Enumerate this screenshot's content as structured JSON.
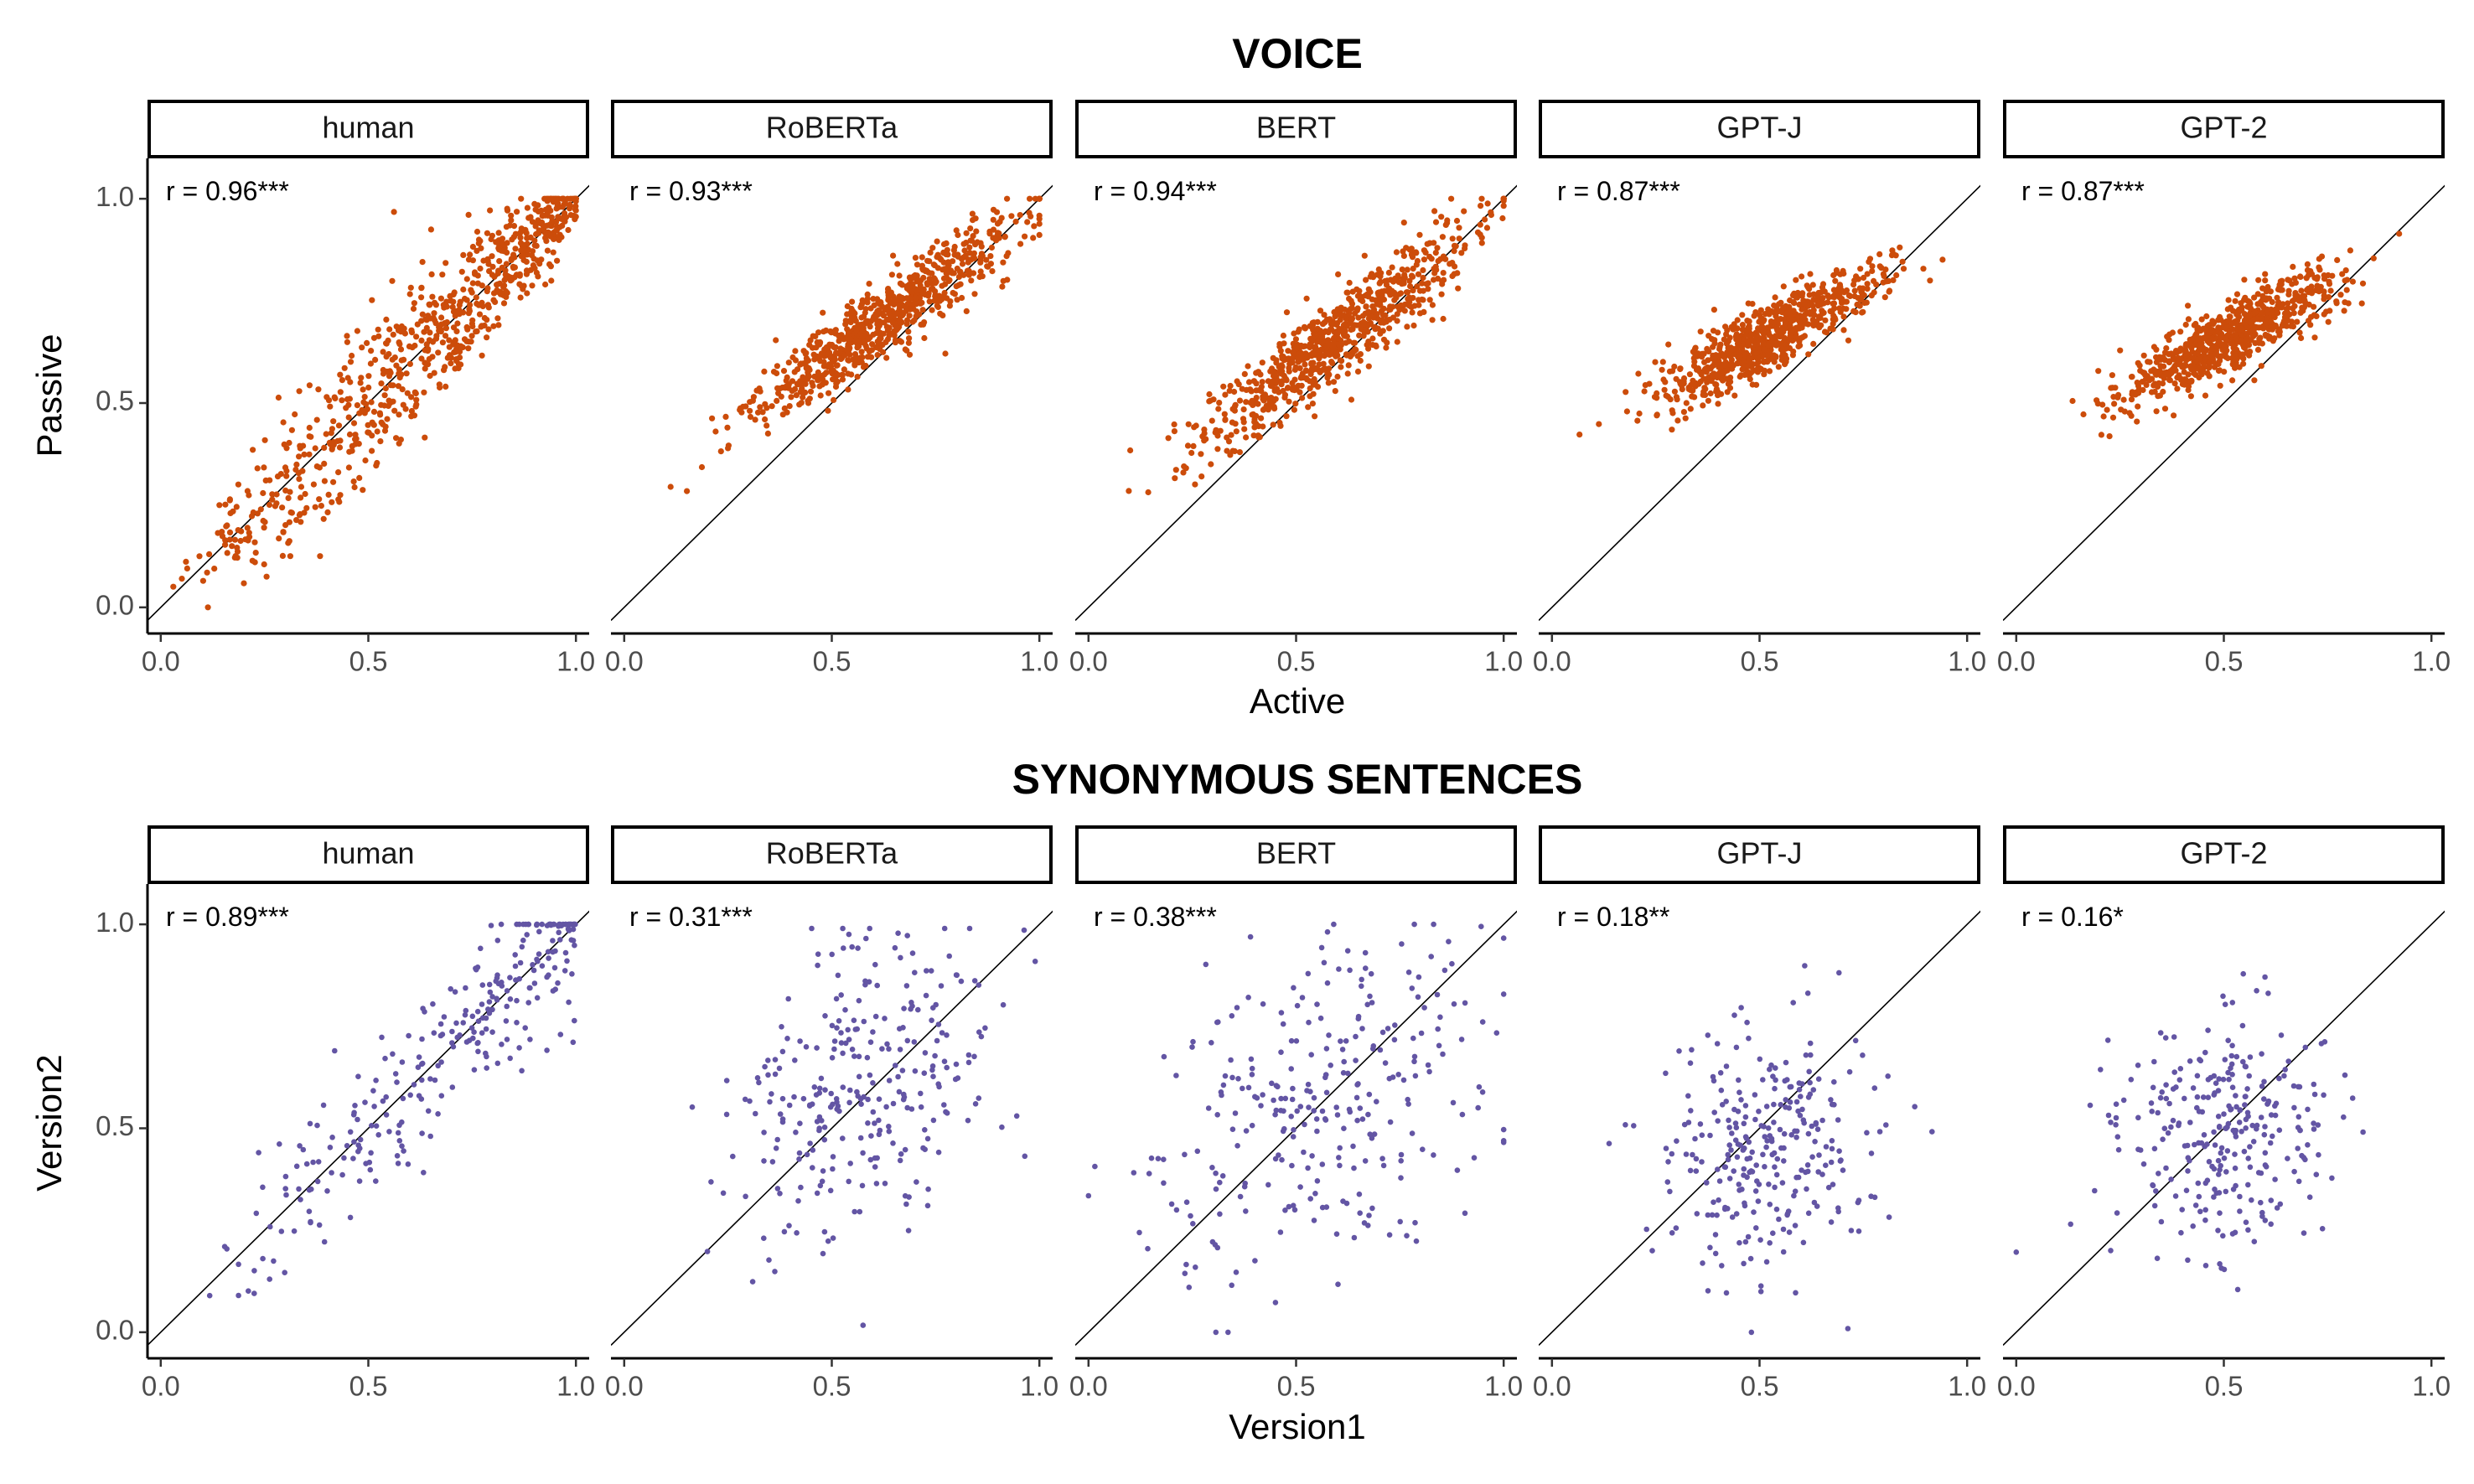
{
  "chart_data": [
    {
      "type": "scatter",
      "title": "VOICE",
      "xlabel": "Active",
      "ylabel": "Passive",
      "xlim": [
        0,
        1
      ],
      "ylim": [
        0,
        1
      ],
      "x_ticks": [
        "0.0",
        "0.5",
        "1.0"
      ],
      "y_ticks": [
        "0.0",
        "0.5",
        "1.0"
      ],
      "point_color": "#CC4C0A",
      "reference_line": "y = x",
      "grid": false,
      "facets": [
        {
          "name": "human",
          "label": "r = 0.96***",
          "r": 0.96,
          "n_points": 750,
          "center": [
            0.62,
            0.67
          ],
          "spread": [
            0.29,
            0.29
          ],
          "noise": 0.07,
          "range": [
            0.0,
            1.0
          ]
        },
        {
          "name": "RoBERTa",
          "label": "r = 0.93***",
          "r": 0.93,
          "n_points": 750,
          "center": [
            0.62,
            0.7
          ],
          "spread": [
            0.16,
            0.12
          ],
          "noise": 0.04,
          "range": [
            0.0,
            1.0
          ]
        },
        {
          "name": "BERT",
          "label": "r = 0.94***",
          "r": 0.94,
          "n_points": 750,
          "center": [
            0.6,
            0.66
          ],
          "spread": [
            0.18,
            0.15
          ],
          "noise": 0.055,
          "range": [
            0.02,
            1.0
          ]
        },
        {
          "name": "GPT-J",
          "label": "r = 0.87***",
          "r": 0.87,
          "n_points": 750,
          "center": [
            0.52,
            0.66
          ],
          "spread": [
            0.13,
            0.08
          ],
          "noise": 0.055,
          "range": [
            0.0,
            1.0
          ]
        },
        {
          "name": "GPT-2",
          "label": "r = 0.87***",
          "r": 0.87,
          "n_points": 750,
          "center": [
            0.51,
            0.66
          ],
          "spread": [
            0.13,
            0.08
          ],
          "noise": 0.055,
          "range": [
            0.0,
            1.0
          ]
        }
      ]
    },
    {
      "type": "scatter",
      "title": "SYNONYMOUS SENTENCES",
      "xlabel": "Version1",
      "ylabel": "Version2",
      "xlim": [
        0,
        1
      ],
      "ylim": [
        0,
        1
      ],
      "x_ticks": [
        "0.0",
        "0.5",
        "1.0"
      ],
      "y_ticks": [
        "0.0",
        "0.5",
        "1.0"
      ],
      "point_color": "#6355A4",
      "reference_line": "y = x",
      "grid": false,
      "facets": [
        {
          "name": "human",
          "label": "r = 0.89***",
          "r": 0.89,
          "n_points": 280,
          "center": [
            0.74,
            0.74
          ],
          "spread": [
            0.25,
            0.25
          ],
          "noise": 0.1,
          "range": [
            0.0,
            1.0
          ]
        },
        {
          "name": "RoBERTa",
          "label": "r = 0.31***",
          "r": 0.31,
          "n_points": 280,
          "center": [
            0.58,
            0.62
          ],
          "spread": [
            0.17,
            0.19
          ],
          "noise": 0.0,
          "range": [
            0.0,
            0.99
          ]
        },
        {
          "name": "BERT",
          "label": "r = 0.38***",
          "r": 0.38,
          "n_points": 280,
          "center": [
            0.55,
            0.55
          ],
          "spread": [
            0.2,
            0.22
          ],
          "noise": 0.0,
          "range": [
            0.0,
            1.0
          ]
        },
        {
          "name": "GPT-J",
          "label": "r = 0.18**",
          "r": 0.18,
          "n_points": 280,
          "center": [
            0.52,
            0.45
          ],
          "spread": [
            0.13,
            0.17
          ],
          "noise": 0.0,
          "range": [
            0.0,
            1.0
          ]
        },
        {
          "name": "GPT-2",
          "label": "r = 0.16*",
          "r": 0.16,
          "n_points": 280,
          "center": [
            0.5,
            0.49
          ],
          "spread": [
            0.13,
            0.15
          ],
          "noise": 0.0,
          "range": [
            0.0,
            1.0
          ]
        }
      ]
    }
  ]
}
